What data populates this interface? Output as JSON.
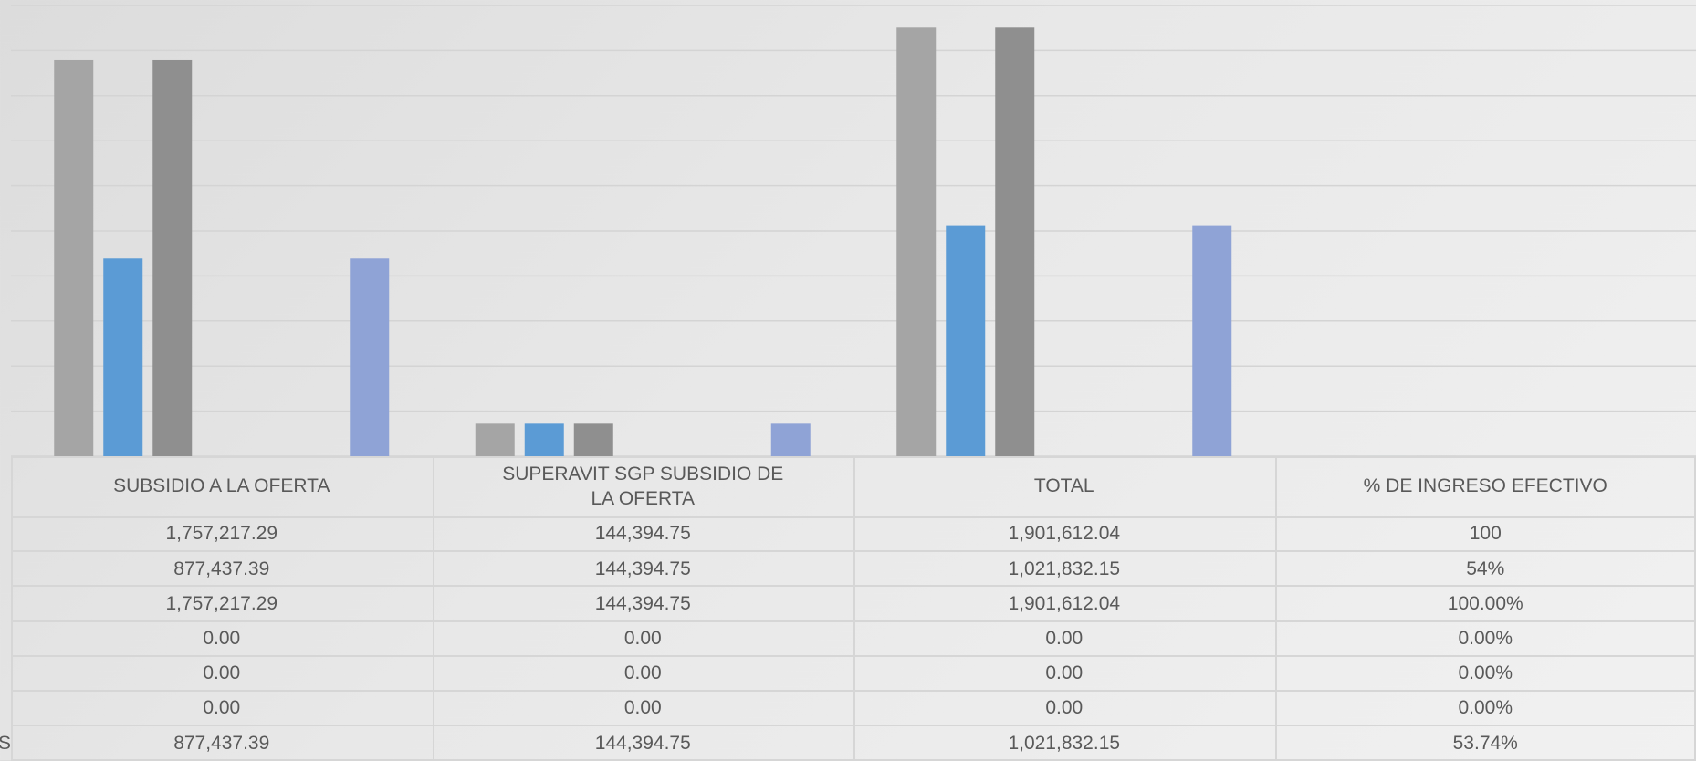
{
  "chart_data": {
    "type": "bar",
    "categories": [
      "SUBSIDIO A LA OFERTA",
      "SUPERAVIT SGP SUBSIDIO DE LA OFERTA",
      "TOTAL",
      "% DE INGRESO EFECTIVO"
    ],
    "series": [
      {
        "color": "#a5a5a5",
        "values": [
          1757217.29,
          144394.75,
          1901612.04,
          100
        ],
        "value_labels": [
          "1,757,217.29",
          "144,394.75",
          "1,901,612.04",
          "100"
        ]
      },
      {
        "color": "#5b9bd5",
        "values": [
          877437.39,
          144394.75,
          1021832.15,
          54
        ],
        "value_labels": [
          "877,437.39",
          "144,394.75",
          "1,021,832.15",
          "54%"
        ]
      },
      {
        "color": "#8f8f8f",
        "values": [
          1757217.29,
          144394.75,
          1901612.04,
          100
        ],
        "value_labels": [
          "1,757,217.29",
          "144,394.75",
          "1,901,612.04",
          "100.00%"
        ]
      },
      {
        "color": "#ffc000",
        "values": [
          0,
          0,
          0,
          0
        ],
        "value_labels": [
          "0.00",
          "0.00",
          "0.00",
          "0.00%"
        ]
      },
      {
        "color": "#4472c4",
        "values": [
          0,
          0,
          0,
          0
        ],
        "value_labels": [
          "0.00",
          "0.00",
          "0.00",
          "0.00%"
        ]
      },
      {
        "color": "#70ad47",
        "values": [
          0,
          0,
          0,
          0
        ],
        "value_labels": [
          "0.00",
          "0.00",
          "0.00",
          "0.00%"
        ]
      },
      {
        "name": "S",
        "color": "#8fa3d6",
        "values": [
          877437.39,
          144394.75,
          1021832.15,
          53.74
        ],
        "value_labels": [
          "877,437.39",
          "144,394.75",
          "1,021,832.15",
          "53.74%"
        ]
      }
    ],
    "ylim": [
      0,
      2000000
    ],
    "yticks": [
      0,
      200000,
      400000,
      600000,
      800000,
      1000000,
      1200000,
      1400000,
      1600000,
      1800000,
      2000000
    ],
    "grid": true
  }
}
